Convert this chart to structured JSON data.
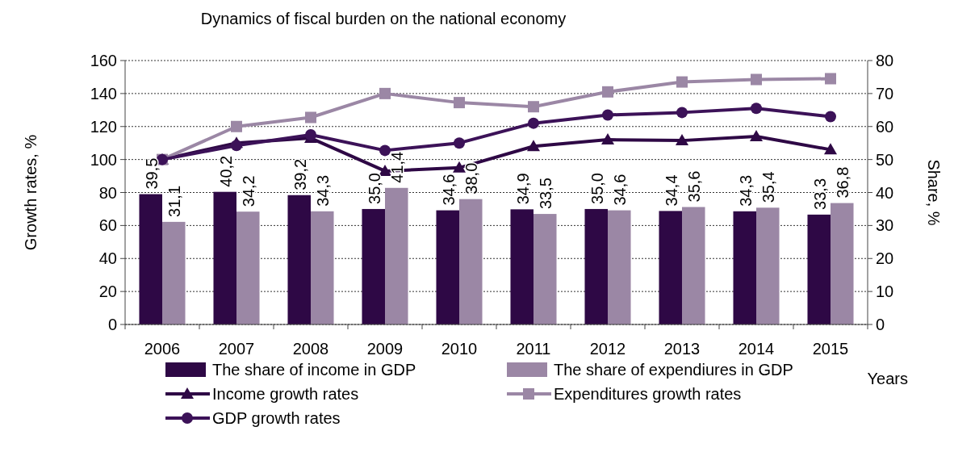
{
  "chart_data": {
    "type": "bar",
    "title": "Dynamics of fiscal burden on the national economy",
    "xlabel": "Years",
    "ylabel": "Growth rates, %",
    "y2label": "Share, %",
    "categories": [
      "2006",
      "2007",
      "2008",
      "2009",
      "2010",
      "2011",
      "2012",
      "2013",
      "2014",
      "2015"
    ],
    "ylim": [
      0,
      160
    ],
    "yticks": [
      0,
      20,
      40,
      60,
      80,
      100,
      120,
      140,
      160
    ],
    "y2lim": [
      0,
      80
    ],
    "y2ticks": [
      0,
      10,
      20,
      30,
      40,
      50,
      60,
      70,
      80
    ],
    "grid": "y",
    "legend": "bottom",
    "series": [
      {
        "name": "The share of income in GDP",
        "axis": "y2",
        "color": "#2e0845",
        "values": [
          39.5,
          40.2,
          39.2,
          35.0,
          34.6,
          34.9,
          35.0,
          34.4,
          34.3,
          33.3
        ],
        "value_labels": [
          "39,5",
          "40,2",
          "39,2",
          "35,0",
          "34,6",
          "34,9",
          "35,0",
          "34,4",
          "34,3",
          "33,3"
        ]
      },
      {
        "name": "The share of expendiures in GDP",
        "axis": "y2",
        "color": "#9b87a5",
        "values": [
          31.1,
          34.2,
          34.3,
          41.4,
          38.0,
          33.5,
          34.6,
          35.6,
          35.4,
          36.8
        ],
        "value_labels": [
          "31,1",
          "34,2",
          "34,3",
          "41,4",
          "38,0",
          "33,5",
          "34,6",
          "35,6",
          "35,4",
          "36,8"
        ]
      },
      {
        "name": "Income growth rates",
        "type": "line",
        "marker": "triangle",
        "color": "#2e0845",
        "values": [
          100,
          110,
          113,
          93,
          95,
          108,
          112,
          111.5,
          114,
          106
        ]
      },
      {
        "name": "Expenditures growth rates",
        "type": "line",
        "marker": "square",
        "color": "#9b87a5",
        "values": [
          100,
          120,
          125.5,
          140,
          134.5,
          132,
          141,
          147,
          148.5,
          149
        ]
      },
      {
        "name": "GDP growth rates",
        "type": "line",
        "marker": "circle",
        "color": "#3c1258",
        "values": [
          100,
          108.5,
          115,
          105.5,
          110,
          122,
          127,
          128.5,
          131,
          126
        ]
      }
    ]
  }
}
